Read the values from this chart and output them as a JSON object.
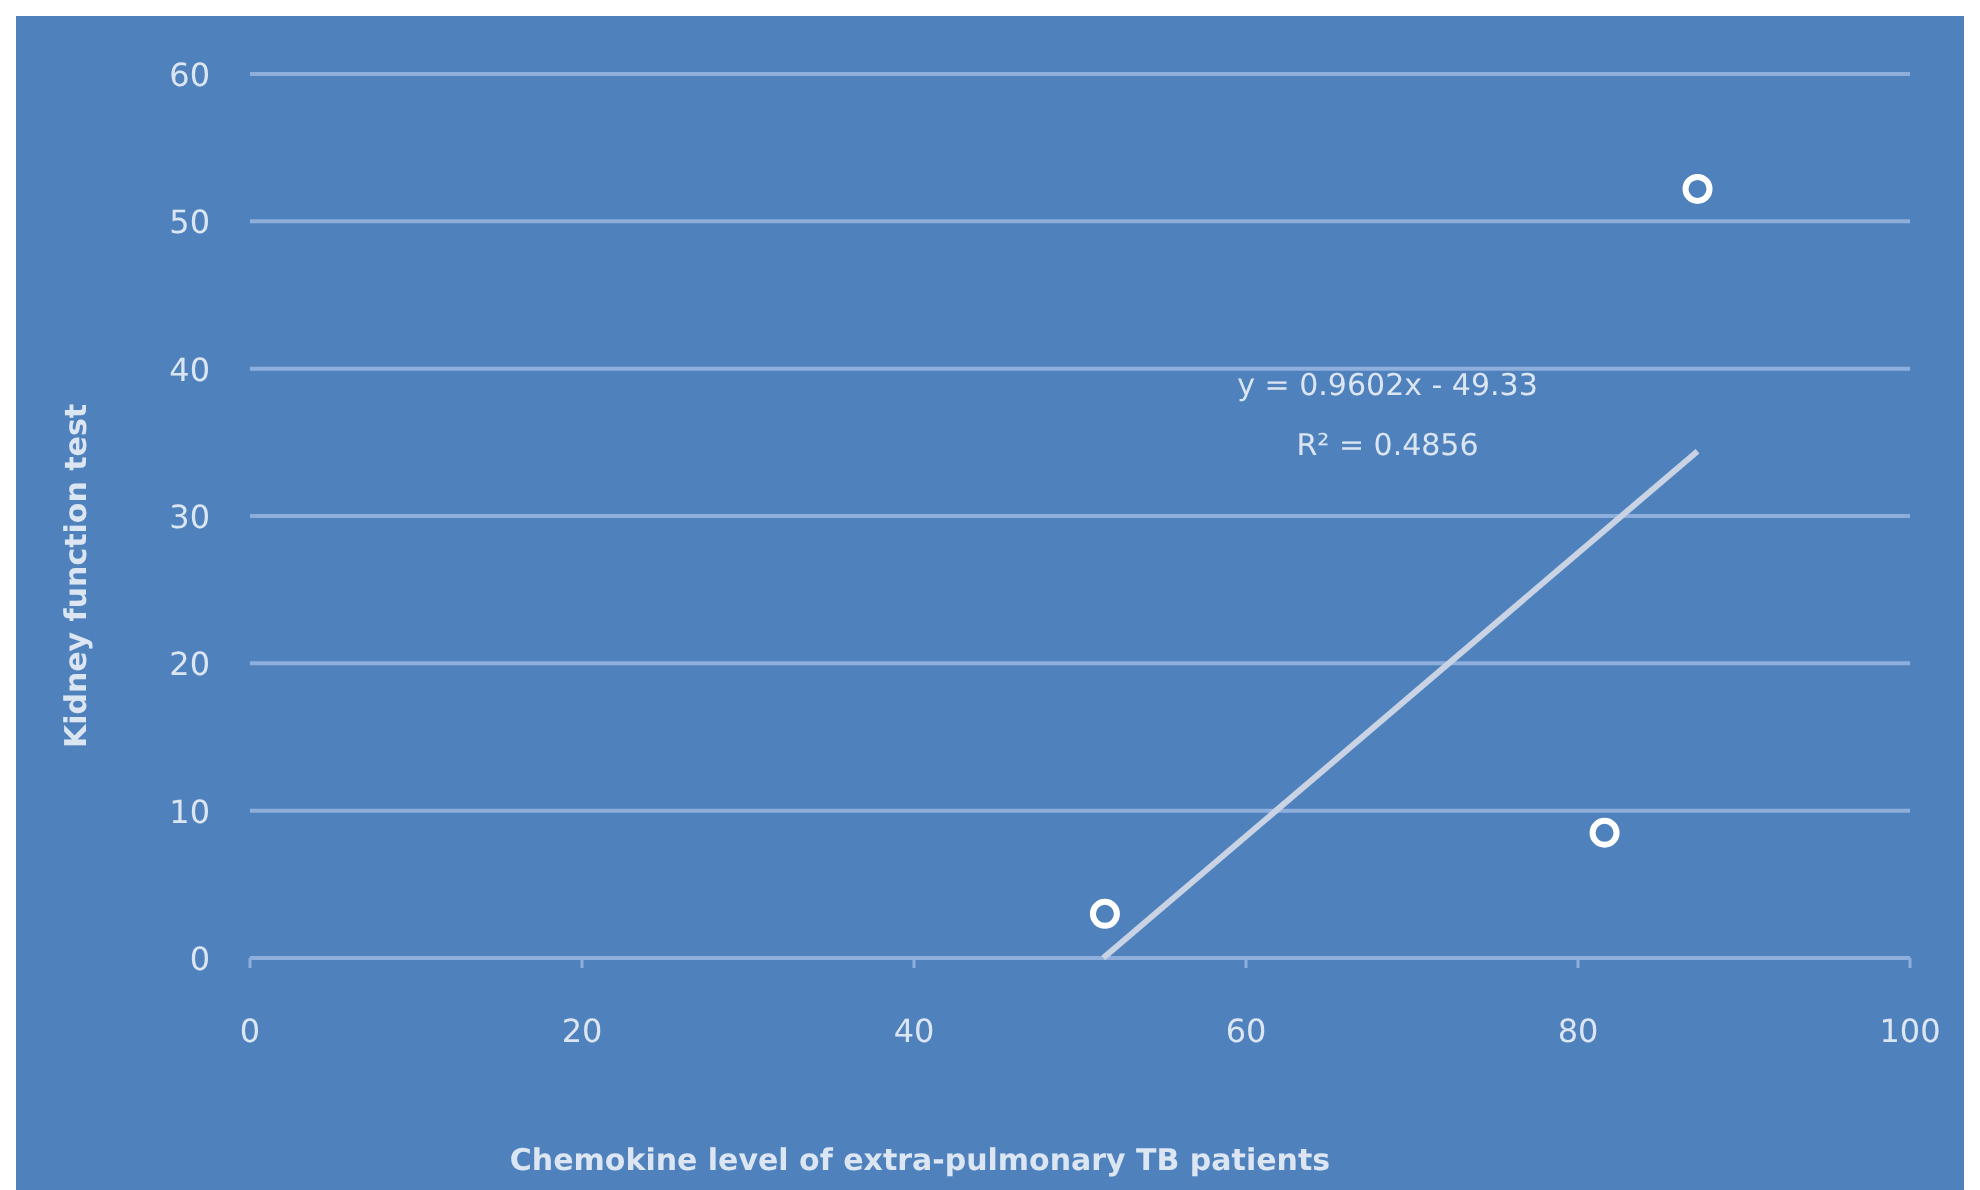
{
  "chart_data": {
    "type": "scatter",
    "xlabel": "Chemokine level of extra-pulmonary TB patients",
    "ylabel": "Kidney function test",
    "xlim": [
      0,
      100
    ],
    "xticks": [
      0,
      20,
      40,
      60,
      80,
      100
    ],
    "ylim": [
      0,
      60
    ],
    "yticks": [
      0,
      10,
      20,
      30,
      40,
      50,
      60
    ],
    "grid": "y",
    "series": [
      {
        "marker": "circle",
        "color": "#ffffff",
        "x": [
          51.5,
          81.6,
          87.2
        ],
        "values": [
          3,
          8.5,
          52.2
        ]
      },
      {
        "type": "line",
        "marker": "none",
        "color": "#c9d3e3",
        "x": [
          51.4,
          87.2
        ],
        "values": [
          0,
          34.4
        ]
      }
    ],
    "annotations": [
      "y = 0.9602x - 49.33",
      "R² = 0.4856"
    ]
  }
}
